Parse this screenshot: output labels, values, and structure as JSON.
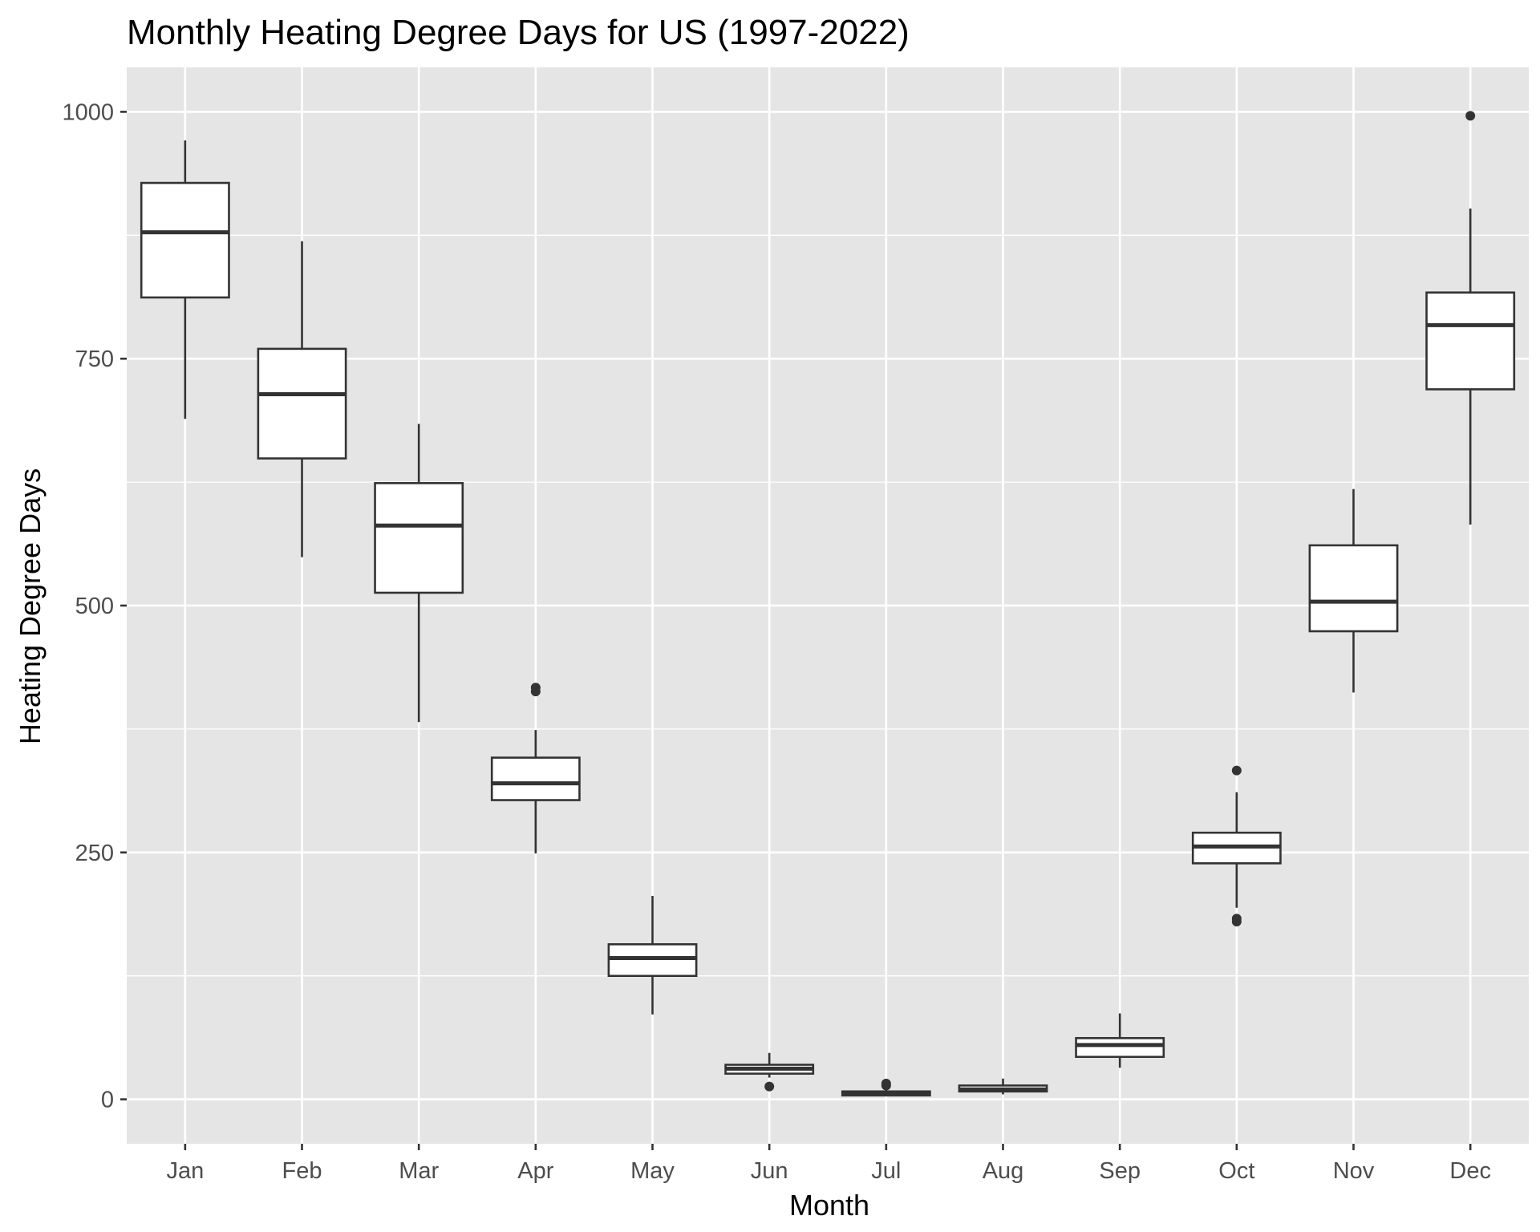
{
  "chart_data": {
    "type": "boxplot",
    "title": "Monthly Heating Degree Days for US (1997-2022)",
    "xlabel": "Month",
    "ylabel": "Heating Degree Days",
    "ylim": [
      -45,
      1045
    ],
    "yticks": [
      0,
      250,
      500,
      750,
      1000
    ],
    "grid": true,
    "legend": "none",
    "categories": [
      "Jan",
      "Feb",
      "Mar",
      "Apr",
      "May",
      "Jun",
      "Jul",
      "Aug",
      "Sep",
      "Oct",
      "Nov",
      "Dec"
    ],
    "boxes": [
      {
        "month": "Jan",
        "whisker_low": 689,
        "q1": 812,
        "median": 878,
        "q3": 928,
        "whisker_high": 971,
        "outliers": []
      },
      {
        "month": "Feb",
        "whisker_low": 549,
        "q1": 649,
        "median": 714,
        "q3": 760,
        "whisker_high": 869,
        "outliers": []
      },
      {
        "month": "Mar",
        "whisker_low": 382,
        "q1": 513,
        "median": 581,
        "q3": 624,
        "whisker_high": 684,
        "outliers": []
      },
      {
        "month": "Apr",
        "whisker_low": 249,
        "q1": 303,
        "median": 320,
        "q3": 346,
        "whisker_high": 374,
        "outliers": [
          413,
          417
        ]
      },
      {
        "month": "May",
        "whisker_low": 86,
        "q1": 125,
        "median": 143,
        "q3": 157,
        "whisker_high": 206,
        "outliers": []
      },
      {
        "month": "Jun",
        "whisker_low": 22,
        "q1": 26,
        "median": 31,
        "q3": 35,
        "whisker_high": 47,
        "outliers": [
          13
        ]
      },
      {
        "month": "Jul",
        "whisker_low": 3,
        "q1": 4,
        "median": 6,
        "q3": 8,
        "whisker_high": 11,
        "outliers": [
          14,
          16
        ]
      },
      {
        "month": "Aug",
        "whisker_low": 5,
        "q1": 8,
        "median": 10,
        "q3": 14,
        "whisker_high": 21,
        "outliers": []
      },
      {
        "month": "Sep",
        "whisker_low": 32,
        "q1": 43,
        "median": 55,
        "q3": 62,
        "whisker_high": 87,
        "outliers": []
      },
      {
        "month": "Oct",
        "whisker_low": 194,
        "q1": 239,
        "median": 256,
        "q3": 270,
        "whisker_high": 311,
        "outliers": [
          180,
          183,
          333
        ]
      },
      {
        "month": "Nov",
        "whisker_low": 412,
        "q1": 474,
        "median": 504,
        "q3": 561,
        "whisker_high": 618,
        "outliers": []
      },
      {
        "month": "Dec",
        "whisker_low": 582,
        "q1": 719,
        "median": 784,
        "q3": 817,
        "whisker_high": 902,
        "outliers": [
          996
        ]
      }
    ]
  }
}
